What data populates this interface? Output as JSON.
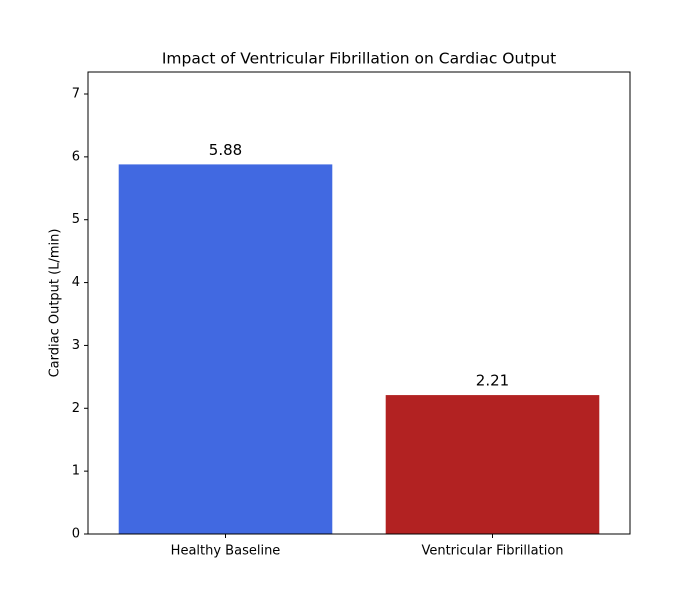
{
  "chart_data": {
    "type": "bar",
    "title": "Impact of Ventricular Fibrillation on Cardiac Output",
    "ylabel": "Cardiac Output (L/min)",
    "categories": [
      "Healthy Baseline",
      "Ventricular Fibrillation"
    ],
    "values": [
      5.88,
      2.21
    ],
    "colors": [
      "#4169e1",
      "#b22222"
    ],
    "ylim": [
      0,
      7.35
    ],
    "yticks": [
      0,
      1,
      2,
      3,
      4,
      5,
      6,
      7
    ],
    "grid": false
  }
}
